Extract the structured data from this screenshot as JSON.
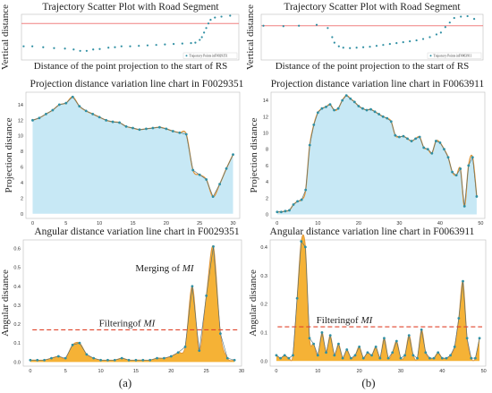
{
  "panel_labels": {
    "a": "(a)",
    "b": "(b)"
  },
  "colors": {
    "point": "#2f8fa3",
    "projection_fill": "#c7e8f5",
    "angular_fill": "#f5b236",
    "curve": "#e0963b",
    "road": "#f08080",
    "filter_line": "#e0442c"
  },
  "chart_data": [
    {
      "id": "scatter_a",
      "type": "scatter",
      "title": "Trajectory Scatter Plot with Road Segment",
      "xlabel": "Distance of the point projection to the start of RS",
      "ylabel": "Vertical distance",
      "legend": "Trajectory Points inF0029351",
      "legend_position": "bottom-right",
      "road_line_y": 0.8,
      "xlim": [
        0,
        100
      ],
      "ylim": [
        0,
        1
      ],
      "points": [
        [
          1,
          0.3
        ],
        [
          5,
          0.3
        ],
        [
          10,
          0.28
        ],
        [
          15,
          0.26
        ],
        [
          20,
          0.25
        ],
        [
          24,
          0.23
        ],
        [
          27,
          0.2
        ],
        [
          30,
          0.2
        ],
        [
          33,
          0.23
        ],
        [
          36,
          0.24
        ],
        [
          40,
          0.27
        ],
        [
          43,
          0.28
        ],
        [
          46,
          0.3
        ],
        [
          50,
          0.3
        ],
        [
          54,
          0.31
        ],
        [
          58,
          0.32
        ],
        [
          62,
          0.33
        ],
        [
          66,
          0.34
        ],
        [
          70,
          0.35
        ],
        [
          74,
          0.36
        ],
        [
          78,
          0.37
        ],
        [
          80,
          0.38
        ],
        [
          82,
          0.44
        ],
        [
          83,
          0.5
        ],
        [
          84,
          0.6
        ],
        [
          85,
          0.7
        ],
        [
          86,
          0.8
        ],
        [
          87,
          0.88
        ],
        [
          89,
          0.93
        ],
        [
          92,
          0.95
        ],
        [
          96,
          0.97
        ]
      ]
    },
    {
      "id": "scatter_b",
      "type": "scatter",
      "title": "Trajectory Scatter Plot with Road Segment",
      "xlabel": "Distance of the point projection to the start of RS",
      "ylabel": "Vertical distance",
      "legend": "Trajectory Points inF0063911",
      "legend_position": "bottom-right",
      "road_line_y": 0.75,
      "xlim": [
        0,
        100
      ],
      "ylim": [
        0,
        1
      ],
      "points": [
        [
          1,
          0.75
        ],
        [
          10,
          0.74
        ],
        [
          17,
          0.75
        ],
        [
          25,
          0.77
        ],
        [
          30,
          0.7
        ],
        [
          32,
          0.5
        ],
        [
          33,
          0.38
        ],
        [
          35,
          0.3
        ],
        [
          37,
          0.27
        ],
        [
          40,
          0.26
        ],
        [
          43,
          0.27
        ],
        [
          46,
          0.28
        ],
        [
          49,
          0.29
        ],
        [
          52,
          0.31
        ],
        [
          55,
          0.33
        ],
        [
          58,
          0.35
        ],
        [
          61,
          0.37
        ],
        [
          64,
          0.39
        ],
        [
          67,
          0.41
        ],
        [
          70,
          0.43
        ],
        [
          73,
          0.46
        ],
        [
          76,
          0.5
        ],
        [
          79,
          0.56
        ],
        [
          81,
          0.6
        ],
        [
          83,
          0.72
        ],
        [
          85,
          0.82
        ],
        [
          87,
          0.92
        ],
        [
          90,
          0.95
        ],
        [
          93,
          0.96
        ],
        [
          96,
          0.9
        ]
      ]
    },
    {
      "id": "projection_a",
      "type": "area",
      "title": "Projection distance variation line chart in F0029351",
      "xlabel": "",
      "ylabel": "Projection distance",
      "xlim": [
        -1,
        31
      ],
      "ylim": [
        -0.6,
        15.6
      ],
      "xticks": [
        0,
        5,
        10,
        15,
        20,
        25,
        30
      ],
      "yticks": [
        0,
        2,
        4,
        6,
        8,
        10,
        12,
        14
      ],
      "x": [
        0,
        1,
        2,
        3,
        4,
        5,
        6,
        7,
        8,
        9,
        10,
        11,
        12,
        13,
        14,
        15,
        16,
        17,
        18,
        19,
        20,
        21,
        22,
        23,
        24,
        25,
        26,
        27,
        28,
        29,
        30
      ],
      "values": [
        12.0,
        12.3,
        12.8,
        13.3,
        14.0,
        14.2,
        15.0,
        13.8,
        13.2,
        12.8,
        12.4,
        12.0,
        11.8,
        11.7,
        11.2,
        11.0,
        10.8,
        10.9,
        11.0,
        11.1,
        10.9,
        10.6,
        10.4,
        10.2,
        5.6,
        5.0,
        4.4,
        2.2,
        3.8,
        5.8,
        7.6
      ]
    },
    {
      "id": "projection_b",
      "type": "area",
      "title": "Projection distance variation line chart in F0063911",
      "xlabel": "",
      "ylabel": "Projection distance",
      "xlim": [
        -1.5,
        51
      ],
      "ylim": [
        -0.5,
        15
      ],
      "xticks": [
        0,
        10,
        20,
        30,
        40,
        50
      ],
      "yticks": [
        0,
        2,
        4,
        6,
        8,
        10,
        12,
        14
      ],
      "x": [
        0,
        1,
        2,
        3,
        4,
        5,
        6,
        7,
        8,
        9,
        10,
        11,
        12,
        13,
        14,
        15,
        16,
        17,
        18,
        19,
        20,
        21,
        22,
        23,
        24,
        25,
        26,
        27,
        28,
        29,
        30,
        31,
        32,
        33,
        34,
        35,
        36,
        37,
        38,
        39,
        40,
        41,
        42,
        43,
        44,
        45,
        46,
        47,
        48,
        49
      ],
      "values": [
        0.3,
        0.3,
        0.4,
        0.5,
        1.2,
        1.6,
        1.8,
        3.0,
        8.5,
        11.0,
        12.5,
        13.0,
        13.2,
        13.5,
        12.8,
        13.0,
        14.0,
        14.6,
        14.2,
        13.8,
        13.3,
        13.0,
        12.8,
        12.9,
        12.6,
        12.3,
        12.0,
        11.8,
        11.4,
        9.7,
        9.5,
        9.6,
        9.3,
        9.0,
        9.3,
        9.5,
        8.2,
        8.0,
        7.5,
        9.0,
        8.8,
        8.0,
        7.0,
        5.2,
        4.8,
        5.6,
        1.0,
        6.0,
        7.0,
        2.2
      ]
    },
    {
      "id": "angular_a",
      "type": "area",
      "title": "Angular distance variation line chart in F0029351",
      "xlabel": "",
      "ylabel": "Angular distance",
      "xlim": [
        -1,
        30
      ],
      "ylim": [
        -0.022,
        0.645
      ],
      "xticks": [
        0,
        5,
        10,
        15,
        20,
        25,
        30
      ],
      "yticks": [
        0.0,
        0.1,
        0.2,
        0.3,
        0.4,
        0.5,
        0.6
      ],
      "threshold": 0.17,
      "threshold_label": "Filteringof ",
      "threshold_label_italic": "MI",
      "annotation": "Merging of ",
      "annotation_italic": "MI",
      "x": [
        0,
        1,
        2,
        3,
        4,
        5,
        6,
        7,
        8,
        9,
        10,
        11,
        12,
        13,
        14,
        15,
        16,
        17,
        18,
        19,
        20,
        21,
        22,
        23,
        24,
        25,
        26,
        27,
        28,
        29
      ],
      "values": [
        0.01,
        0.01,
        0.01,
        0.02,
        0.03,
        0.02,
        0.09,
        0.1,
        0.04,
        0.02,
        0.01,
        0.01,
        0.01,
        0.02,
        0.01,
        0.01,
        0.01,
        0.01,
        0.02,
        0.02,
        0.03,
        0.05,
        0.08,
        0.4,
        0.06,
        0.35,
        0.61,
        0.15,
        0.02,
        0.01
      ]
    },
    {
      "id": "angular_b",
      "type": "area",
      "title": "Angular distance variation line chart in F0063911",
      "xlabel": "",
      "ylabel": "Angular distance",
      "xlim": [
        -1.5,
        50.5
      ],
      "ylim": [
        -0.018,
        0.425
      ],
      "xticks": [
        0,
        10,
        20,
        30,
        40,
        50
      ],
      "yticks": [
        0.0,
        0.1,
        0.2,
        0.3,
        0.4
      ],
      "threshold": 0.12,
      "threshold_label": "Filteringof ",
      "threshold_label_italic": "MI",
      "x": [
        0,
        1,
        2,
        3,
        4,
        5,
        6,
        7,
        8,
        9,
        10,
        11,
        12,
        13,
        14,
        15,
        16,
        17,
        18,
        19,
        20,
        21,
        22,
        23,
        24,
        25,
        26,
        27,
        28,
        29,
        30,
        31,
        32,
        33,
        34,
        35,
        36,
        37,
        38,
        39,
        40,
        41,
        42,
        43,
        44,
        45,
        46,
        47,
        48,
        49
      ],
      "values": [
        0.02,
        0.01,
        0.02,
        0.01,
        0.02,
        0.22,
        0.42,
        0.4,
        0.08,
        0.06,
        0.02,
        0.1,
        0.03,
        0.09,
        0.02,
        0.06,
        0.01,
        0.04,
        0.01,
        0.02,
        0.05,
        0.01,
        0.03,
        0.02,
        0.05,
        0.01,
        0.08,
        0.01,
        0.03,
        0.07,
        0.01,
        0.02,
        0.09,
        0.02,
        0.01,
        0.11,
        0.03,
        0.01,
        0.01,
        0.03,
        0.01,
        0.01,
        0.02,
        0.05,
        0.15,
        0.28,
        0.08,
        0.01,
        0.01,
        0.08
      ]
    }
  ]
}
